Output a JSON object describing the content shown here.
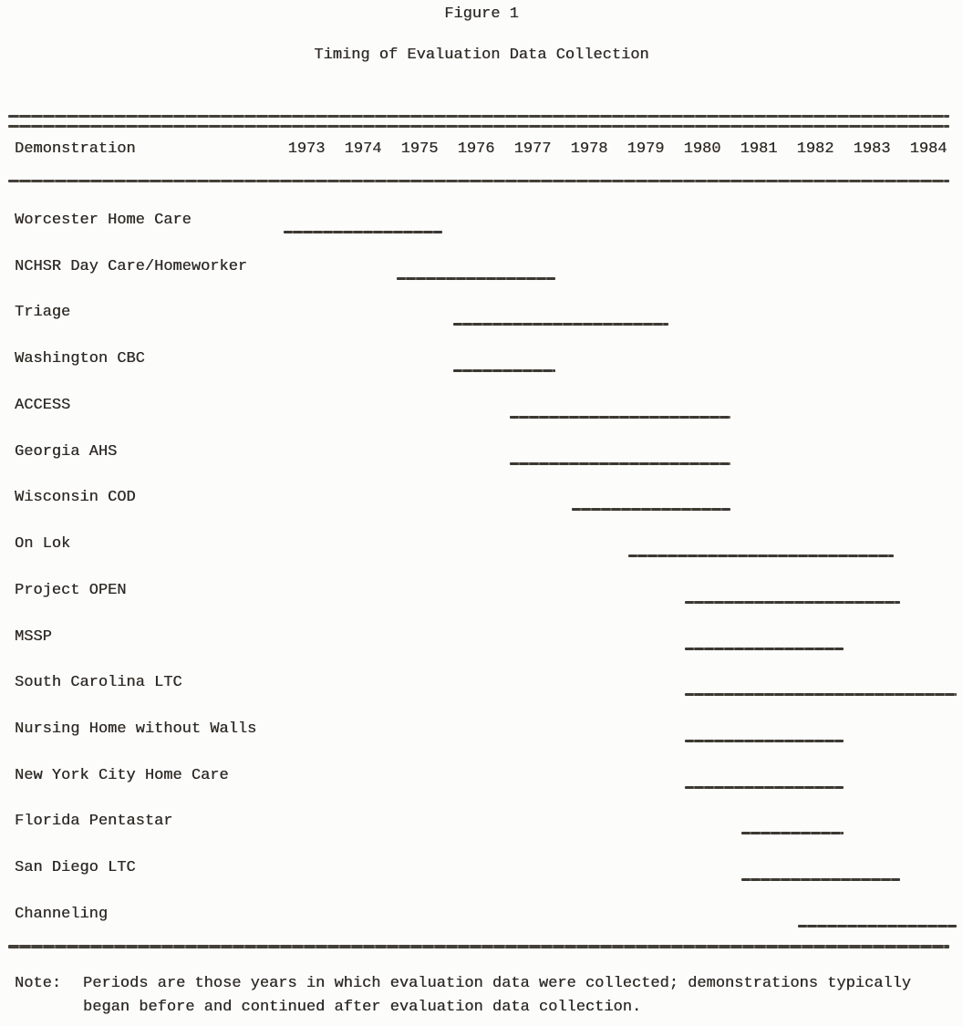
{
  "page": {
    "figure_label": "Figure 1",
    "title": "Timing of Evaluation Data Collection",
    "note_label": "Note:",
    "note_text": "Periods are those years in which evaluation data were collected; demonstrations typically began before and continued after evaluation data collection."
  },
  "chart_data": {
    "type": "bar",
    "subtype": "horizontal-range-gantt",
    "title": "Timing of Evaluation Data Collection",
    "column_header": "Demonstration",
    "xlabel": "",
    "ylabel": "",
    "grid": false,
    "legend": false,
    "x_axis": {
      "min": 1972.5,
      "max": 1984.6,
      "tick_years": [
        1973,
        1974,
        1975,
        1976,
        1977,
        1978,
        1979,
        1980,
        1981,
        1982,
        1983,
        1984
      ]
    },
    "years": [
      "1973",
      "1974",
      "1975",
      "1976",
      "1977",
      "1978",
      "1979",
      "1980",
      "1981",
      "1982",
      "1983",
      "1984"
    ],
    "rows": [
      {
        "label": "Worcester Home Care",
        "start": 1972.6,
        "end": 1975.4
      },
      {
        "label": "NCHSR Day Care/Homeworker",
        "start": 1974.6,
        "end": 1977.4
      },
      {
        "label": "Triage",
        "start": 1975.6,
        "end": 1979.4
      },
      {
        "label": "Washington CBC",
        "start": 1975.6,
        "end": 1977.4
      },
      {
        "label": "ACCESS",
        "start": 1976.6,
        "end": 1980.5
      },
      {
        "label": "Georgia AHS",
        "start": 1976.6,
        "end": 1980.5
      },
      {
        "label": "Wisconsin COD",
        "start": 1977.7,
        "end": 1980.5
      },
      {
        "label": "On Lok",
        "start": 1978.7,
        "end": 1983.4
      },
      {
        "label": "Project OPEN",
        "start": 1979.7,
        "end": 1983.5
      },
      {
        "label": "MSSP",
        "start": 1979.7,
        "end": 1982.5
      },
      {
        "label": "South Carolina LTC",
        "start": 1979.7,
        "end": 1984.5
      },
      {
        "label": "Nursing Home without Walls",
        "start": 1979.7,
        "end": 1982.5
      },
      {
        "label": "New York City Home Care",
        "start": 1979.7,
        "end": 1982.5
      },
      {
        "label": "Florida Pentastar",
        "start": 1980.7,
        "end": 1982.5
      },
      {
        "label": "San Diego LTC",
        "start": 1980.7,
        "end": 1983.5
      },
      {
        "label": "Channeling",
        "start": 1981.7,
        "end": 1984.5
      }
    ],
    "colors": {
      "ink": "#2e2a25",
      "paper": "#fcfcfa",
      "bar": "#3c3832"
    }
  }
}
